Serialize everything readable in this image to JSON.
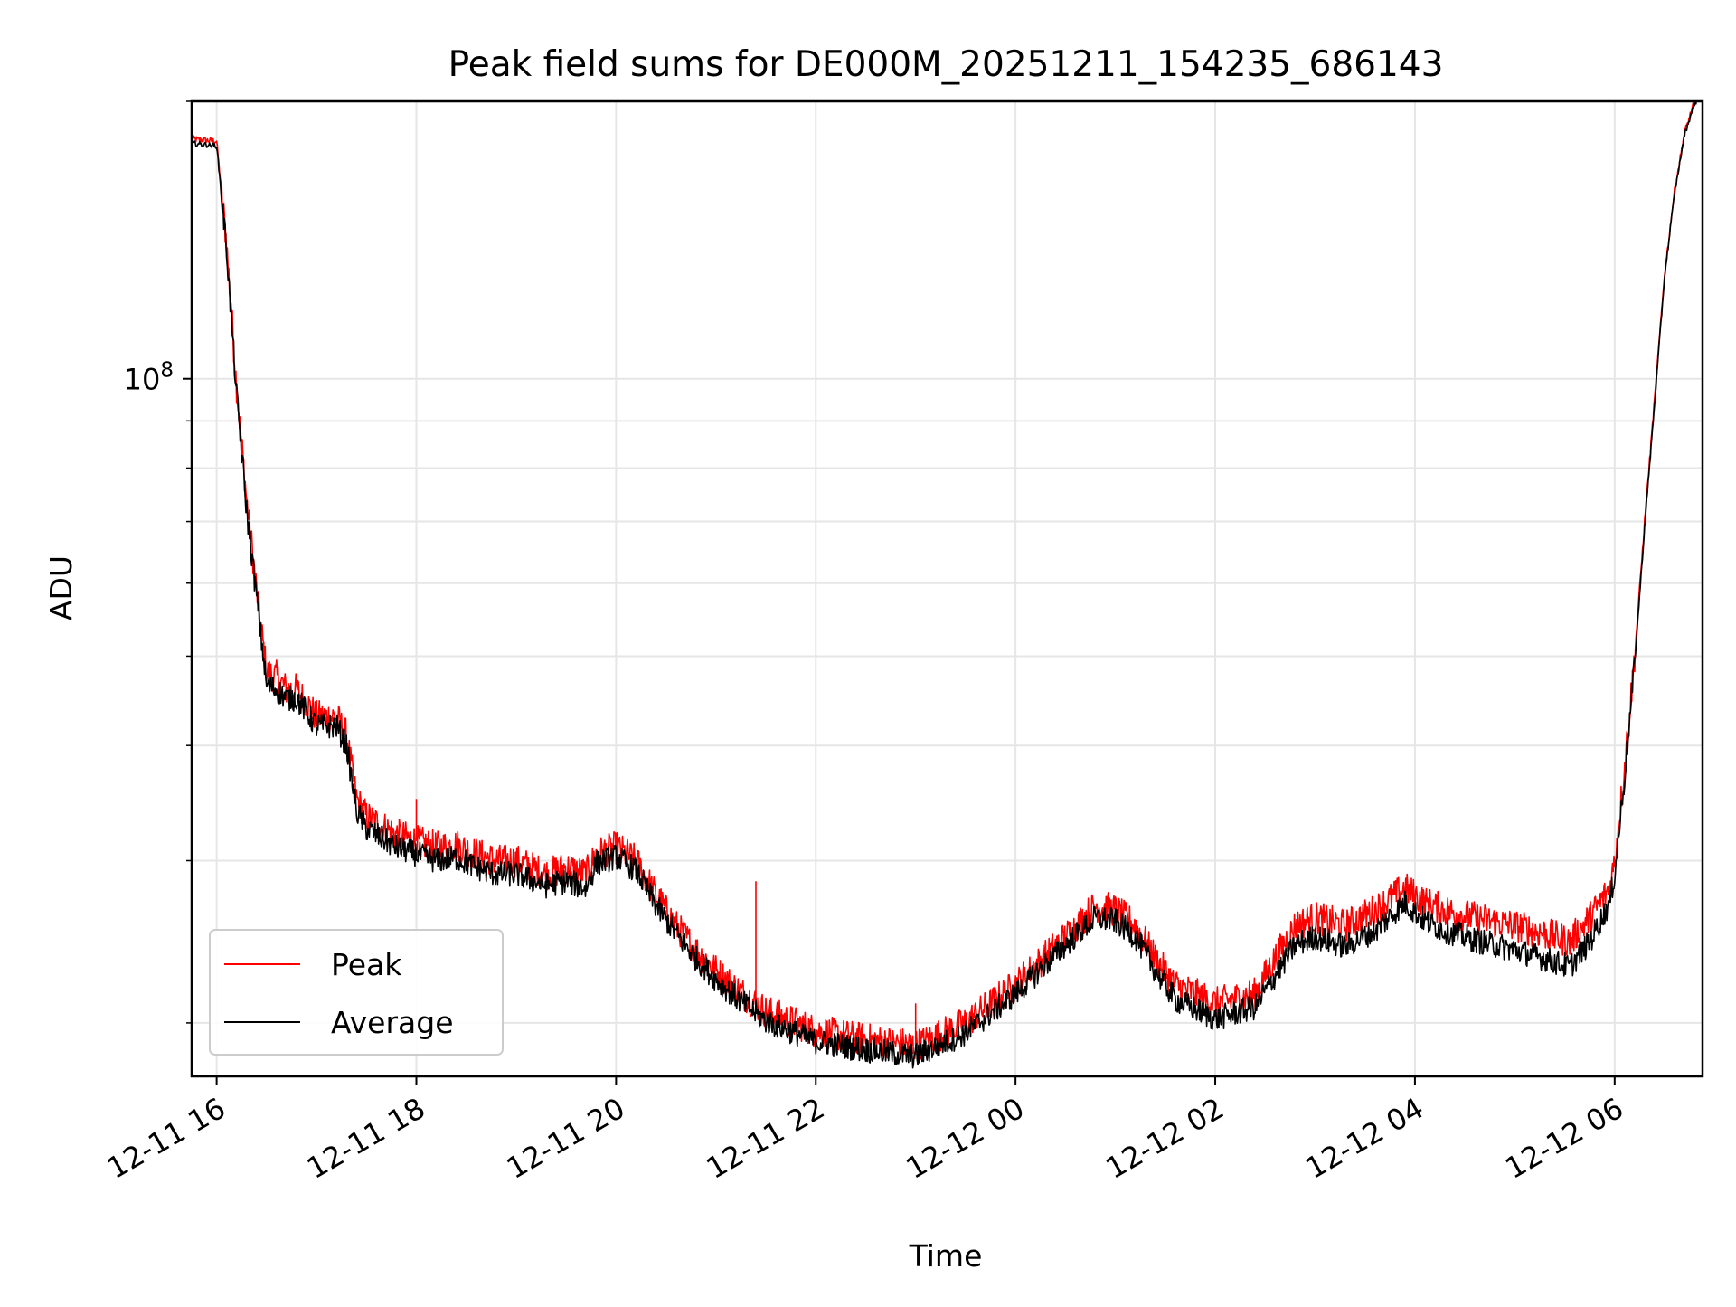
{
  "chart_data": {
    "type": "line",
    "title": "Peak field sums for DE000M_20251211_154235_686143",
    "xlabel": "Time",
    "ylabel": "ADU",
    "yscale": "log",
    "xlim_hours": [
      -0.25,
      14.88
    ],
    "ylim": [
      17500000,
      200000000
    ],
    "x_unit": "hours since 2025-12-11 16:00",
    "x_ticks": [
      {
        "hour": 0,
        "label": "12-11 16"
      },
      {
        "hour": 2,
        "label": "12-11 18"
      },
      {
        "hour": 4,
        "label": "12-11 20"
      },
      {
        "hour": 6,
        "label": "12-11 22"
      },
      {
        "hour": 8,
        "label": "12-12 00"
      },
      {
        "hour": 10,
        "label": "12-12 02"
      },
      {
        "hour": 12,
        "label": "12-12 04"
      },
      {
        "hour": 14,
        "label": "12-12 06"
      }
    ],
    "y_major_ticks": [
      {
        "value": 100000000,
        "base": "10",
        "exp": "8"
      }
    ],
    "y_minor_ticks": [
      20000000,
      30000000,
      40000000,
      50000000,
      60000000,
      70000000,
      80000000,
      90000000,
      200000000
    ],
    "grid": true,
    "legend": "lower-left",
    "series": [
      {
        "name": "Peak",
        "color": "#ff0000",
        "x": [
          -0.25,
          0.0,
          0.1,
          0.2,
          0.3,
          0.4,
          0.5,
          0.6,
          0.7,
          0.8,
          1.0,
          1.2,
          1.3,
          1.4,
          1.5,
          1.6,
          1.8,
          2.0,
          2.2,
          2.4,
          2.6,
          2.8,
          3.0,
          3.3,
          3.5,
          3.7,
          3.8,
          4.0,
          4.2,
          4.4,
          4.6,
          4.8,
          5.0,
          5.2,
          5.5,
          6.0,
          6.5,
          7.0,
          7.5,
          8.0,
          8.5,
          8.8,
          9.0,
          9.2,
          9.4,
          9.6,
          10.0,
          10.4,
          10.6,
          10.8,
          11.0,
          11.3,
          11.6,
          11.9,
          12.1,
          12.3,
          12.6,
          13.0,
          13.3,
          13.55,
          13.75,
          13.95,
          14.0,
          14.1,
          14.2,
          14.3,
          14.4,
          14.5,
          14.6,
          14.7,
          14.8,
          14.88
        ],
        "y": [
          182000000,
          181000000,
          140000000,
          98000000,
          74000000,
          59000000,
          48000000,
          47500000,
          46000000,
          46000000,
          43000000,
          43000000,
          41000000,
          35000000,
          33500000,
          33000000,
          32000000,
          31500000,
          31000000,
          31200000,
          30500000,
          30000000,
          30000000,
          29000000,
          29500000,
          29000000,
          30500000,
          31000000,
          30000000,
          27500000,
          25500000,
          24000000,
          22800000,
          21800000,
          20600000,
          19600000,
          19200000,
          18900000,
          20000000,
          22000000,
          24800000,
          26800000,
          26500000,
          25500000,
          23500000,
          22000000,
          21000000,
          21500000,
          23500000,
          25500000,
          26000000,
          25500000,
          26500000,
          28000000,
          27000000,
          26500000,
          26000000,
          25500000,
          25000000,
          24500000,
          26000000,
          28000000,
          30000000,
          38000000,
          50000000,
          70000000,
          95000000,
          130000000,
          160000000,
          185000000,
          200000000,
          205000000
        ],
        "spikes": [
          {
            "x": 5.4,
            "y": 28500000
          },
          {
            "x": 7.0,
            "y": 21000000
          },
          {
            "x": 2.0,
            "y": 35000000
          }
        ]
      },
      {
        "name": "Average",
        "color": "#000000",
        "x": [
          -0.25,
          0.0,
          0.1,
          0.2,
          0.3,
          0.4,
          0.5,
          0.6,
          0.7,
          0.8,
          1.0,
          1.2,
          1.3,
          1.4,
          1.5,
          1.6,
          1.8,
          2.0,
          2.2,
          2.4,
          2.6,
          2.8,
          3.0,
          3.3,
          3.5,
          3.7,
          3.8,
          4.0,
          4.2,
          4.4,
          4.6,
          4.8,
          5.0,
          5.2,
          5.5,
          6.0,
          6.5,
          7.0,
          7.5,
          8.0,
          8.5,
          8.8,
          9.0,
          9.2,
          9.4,
          9.6,
          10.0,
          10.4,
          10.6,
          10.8,
          11.0,
          11.3,
          11.6,
          11.9,
          12.1,
          12.3,
          12.6,
          13.0,
          13.3,
          13.55,
          13.75,
          13.95,
          14.0,
          14.1,
          14.2,
          14.3,
          14.4,
          14.5,
          14.6,
          14.7,
          14.8,
          14.88
        ],
        "y": [
          180000000,
          179000000,
          138000000,
          96000000,
          72000000,
          58000000,
          46500000,
          46000000,
          45000000,
          45000000,
          42000000,
          42000000,
          40000000,
          34000000,
          32500000,
          32000000,
          31000000,
          30500000,
          30000000,
          30200000,
          29500000,
          29000000,
          29000000,
          28200000,
          28500000,
          28000000,
          29800000,
          30300000,
          29300000,
          26800000,
          25000000,
          23500000,
          22300000,
          21300000,
          20100000,
          19100000,
          18700000,
          18400000,
          19500000,
          21500000,
          24300000,
          26000000,
          25800000,
          24800000,
          22800000,
          21200000,
          20200000,
          20800000,
          22500000,
          24300000,
          24800000,
          24200000,
          25200000,
          27000000,
          25800000,
          25200000,
          24600000,
          24000000,
          23500000,
          23000000,
          24500000,
          27000000,
          29000000,
          37000000,
          49000000,
          69000000,
          94000000,
          129000000,
          159000000,
          184000000,
          199000000,
          204000000
        ]
      }
    ]
  }
}
